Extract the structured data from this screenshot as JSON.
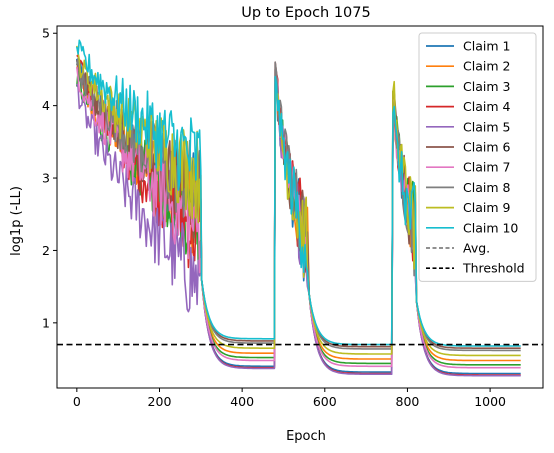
{
  "chart_data": {
    "type": "line",
    "title": "Up to Epoch 1075",
    "xlabel": "Epoch",
    "ylabel": "log1p (-LL)",
    "xlim": [
      -48,
      1128
    ],
    "ylim": [
      0.1,
      5.1
    ],
    "xticks": [
      0,
      200,
      400,
      600,
      800,
      1000
    ],
    "yticks": [
      1,
      2,
      3,
      4,
      5
    ],
    "grid": false,
    "legend_position": "top-right",
    "threshold": {
      "name": "Threshold",
      "value": 0.7,
      "color": "#000000",
      "dash": "dashed"
    },
    "avg": {
      "name": "Avg.",
      "color": "#808080",
      "dash": "dashed"
    },
    "restart_epochs": [
      0,
      480,
      765
    ],
    "series": [
      {
        "name": "Claim 1",
        "color": "#1f77b4",
        "start": 4.6,
        "pre_drop": 2.6,
        "min": 0.3
      },
      {
        "name": "Claim 2",
        "color": "#ff7f0e",
        "start": 4.5,
        "pre_drop": 2.5,
        "min": 0.48
      },
      {
        "name": "Claim 3",
        "color": "#2ca02c",
        "start": 4.4,
        "pre_drop": 2.4,
        "min": 0.42
      },
      {
        "name": "Claim 4",
        "color": "#d62728",
        "start": 4.7,
        "pre_drop": 2.2,
        "min": 0.28
      },
      {
        "name": "Claim 5",
        "color": "#9467bd",
        "start": 4.3,
        "pre_drop": 1.5,
        "min": 0.27
      },
      {
        "name": "Claim 6",
        "color": "#8c564b",
        "start": 4.6,
        "pre_drop": 2.7,
        "min": 0.65
      },
      {
        "name": "Claim 7",
        "color": "#e377c2",
        "start": 4.5,
        "pre_drop": 2.3,
        "min": 0.38
      },
      {
        "name": "Claim 8",
        "color": "#7f7f7f",
        "start": 4.6,
        "pre_drop": 2.8,
        "min": 0.62
      },
      {
        "name": "Claim 9",
        "color": "#bcbd22",
        "start": 4.7,
        "pre_drop": 3.0,
        "min": 0.55
      },
      {
        "name": "Claim 10",
        "color": "#17becf",
        "start": 4.85,
        "pre_drop": 3.2,
        "min": 0.68
      }
    ]
  }
}
